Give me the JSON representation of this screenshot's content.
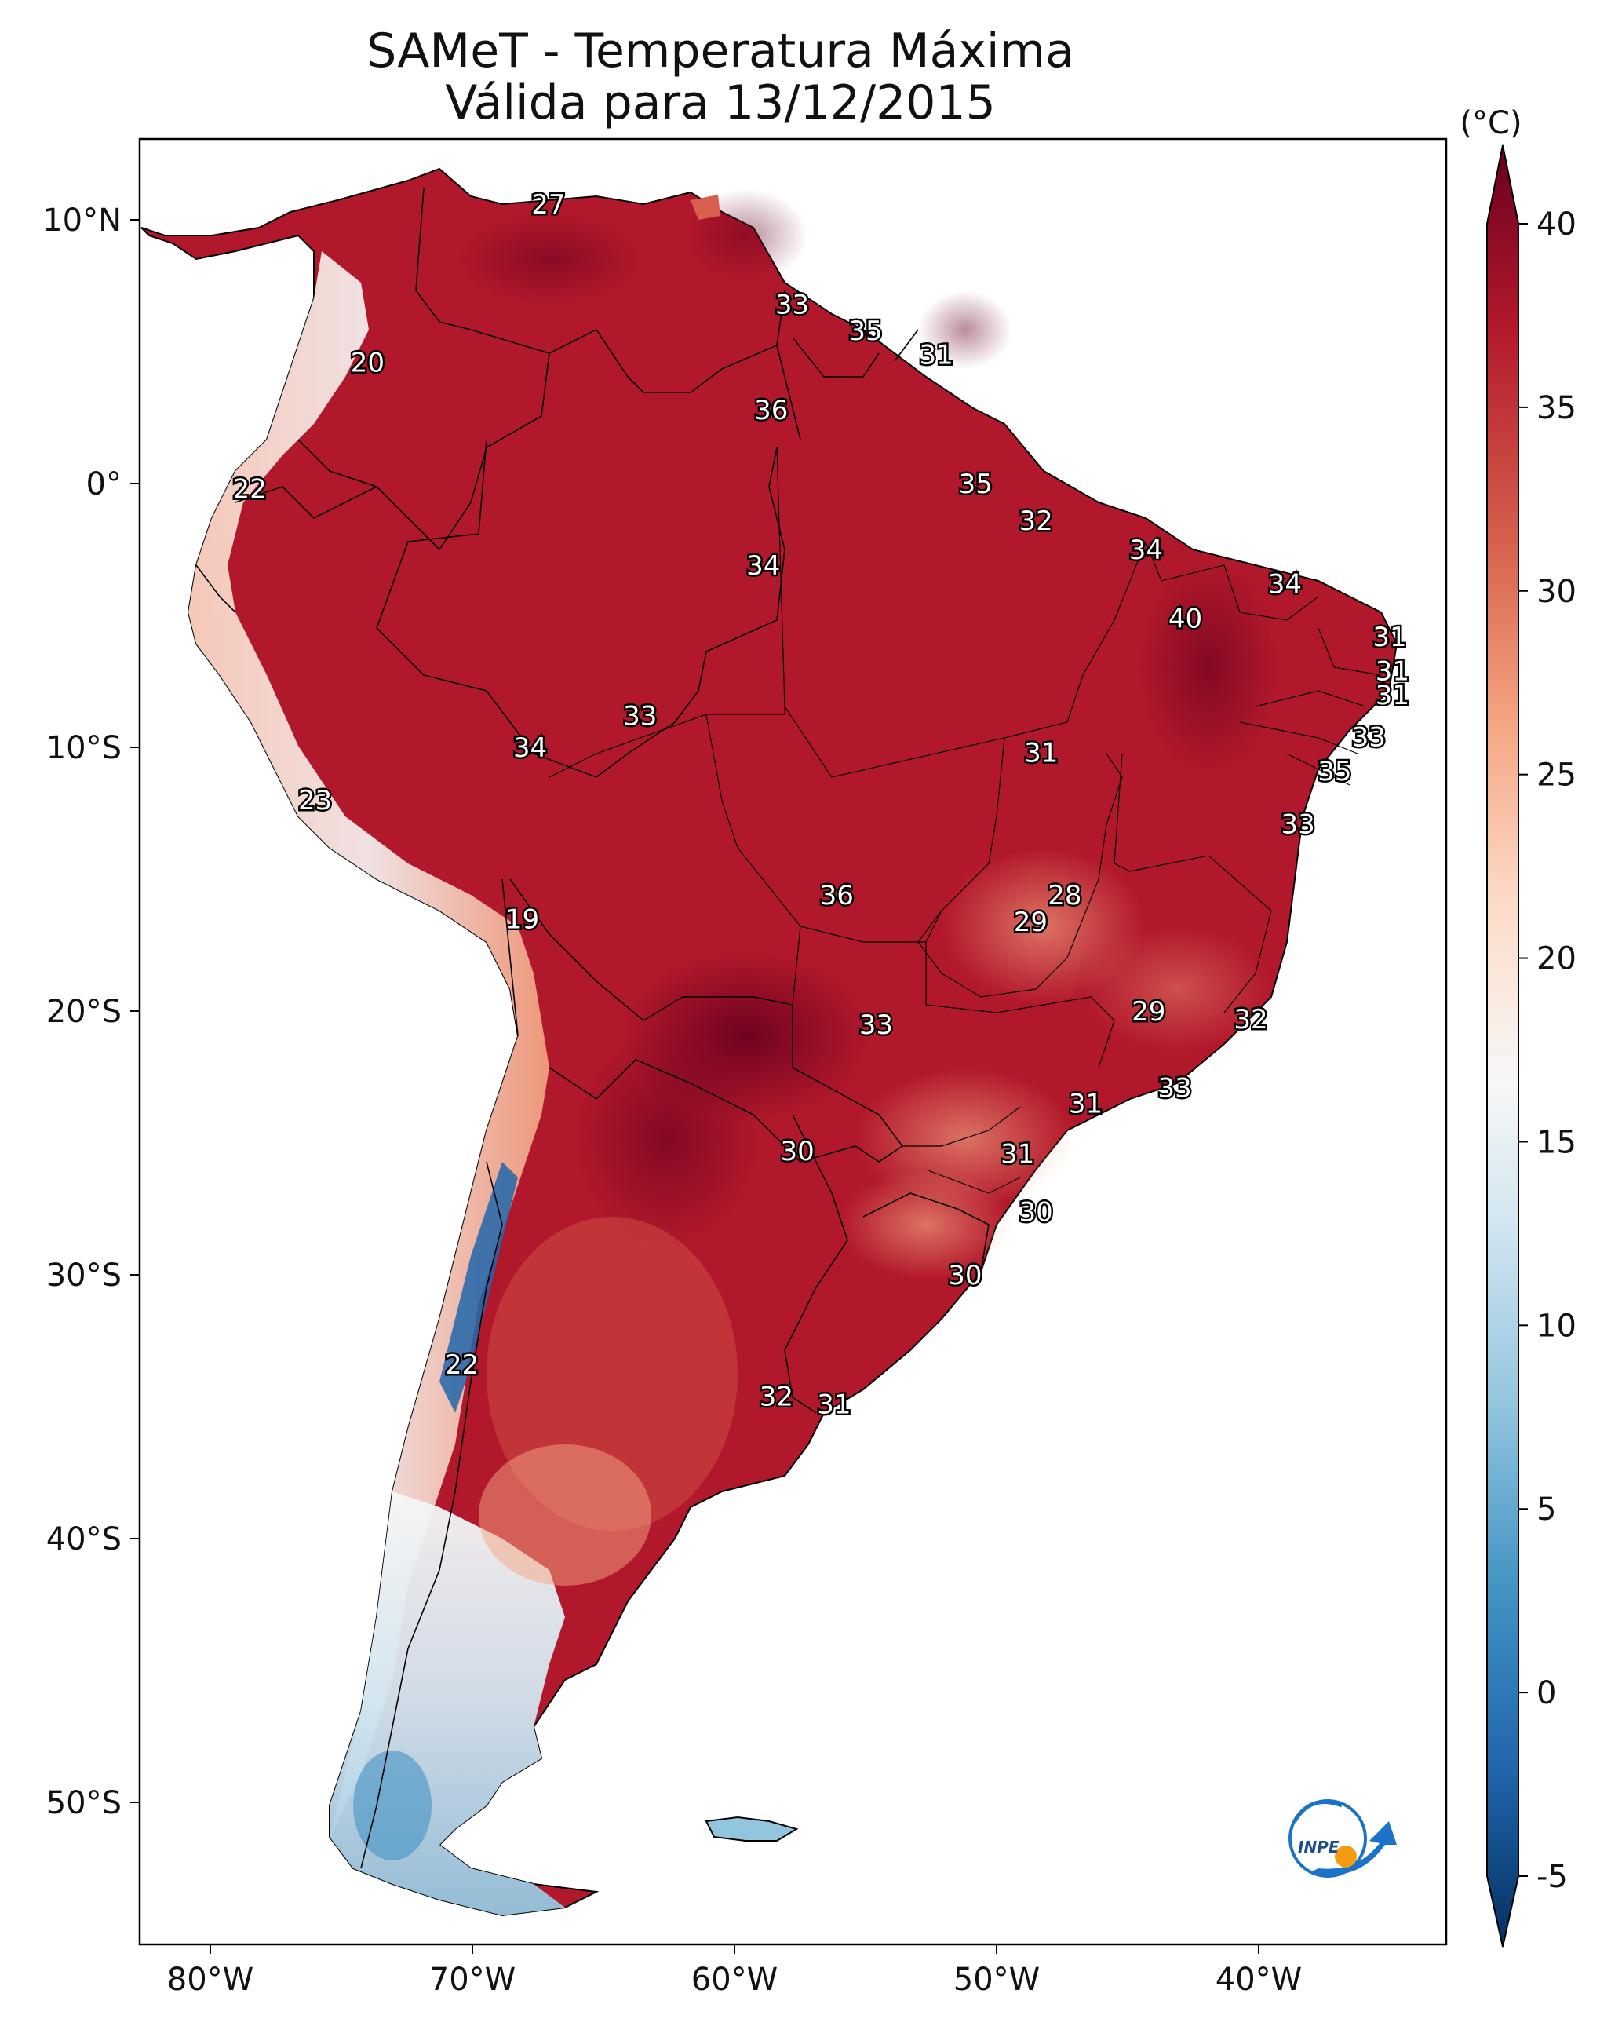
{
  "title": {
    "line1": "SAMeT - Temperatura Máxima",
    "line2": "Válida para 13/12/2015"
  },
  "colorbar": {
    "unit": "(°C)",
    "ticks": [
      "40",
      "35",
      "30",
      "25",
      "20",
      "15",
      "10",
      "5",
      "0",
      "-5"
    ],
    "range": [
      -5,
      40
    ],
    "colors": [
      "#053061",
      "#2166ac",
      "#4393c3",
      "#92c5de",
      "#d1e5f0",
      "#f7f7f7",
      "#fddbc7",
      "#f4a582",
      "#d6604d",
      "#b2182b",
      "#67001f"
    ]
  },
  "axes": {
    "lon_labels": [
      "80°W",
      "70°W",
      "60°W",
      "50°W",
      "40°W"
    ],
    "lat_labels": [
      "10°N",
      "0°",
      "10°S",
      "20°S",
      "30°S",
      "40°S",
      "50°S"
    ]
  },
  "station_values": [
    {
      "lon": -67.1,
      "lat": 10.6,
      "text": "27"
    },
    {
      "lon": -74.0,
      "lat": 4.6,
      "text": "20"
    },
    {
      "lon": -57.8,
      "lat": 6.8,
      "text": "33"
    },
    {
      "lon": -55.0,
      "lat": 5.8,
      "text": "35"
    },
    {
      "lon": -52.3,
      "lat": 4.9,
      "text": "31"
    },
    {
      "lon": -58.6,
      "lat": 2.8,
      "text": "36"
    },
    {
      "lon": -78.5,
      "lat": -0.2,
      "text": "22"
    },
    {
      "lon": -50.8,
      "lat": 0.0,
      "text": "35"
    },
    {
      "lon": -48.5,
      "lat": -1.4,
      "text": "32"
    },
    {
      "lon": -44.3,
      "lat": -2.5,
      "text": "34"
    },
    {
      "lon": -58.9,
      "lat": -3.1,
      "text": "34"
    },
    {
      "lon": -39.0,
      "lat": -3.8,
      "text": "34"
    },
    {
      "lon": -42.8,
      "lat": -5.1,
      "text": "40"
    },
    {
      "lon": -35.0,
      "lat": -5.8,
      "text": "31"
    },
    {
      "lon": -34.9,
      "lat": -7.1,
      "text": "31"
    },
    {
      "lon": -34.9,
      "lat": -8.0,
      "text": "31"
    },
    {
      "lon": -63.6,
      "lat": -8.8,
      "text": "33"
    },
    {
      "lon": -67.8,
      "lat": -10.0,
      "text": "34"
    },
    {
      "lon": -48.3,
      "lat": -10.2,
      "text": "31"
    },
    {
      "lon": -35.8,
      "lat": -9.6,
      "text": "33"
    },
    {
      "lon": -37.1,
      "lat": -10.9,
      "text": "35"
    },
    {
      "lon": -76.0,
      "lat": -12.0,
      "text": "23"
    },
    {
      "lon": -38.5,
      "lat": -12.9,
      "text": "33"
    },
    {
      "lon": -56.1,
      "lat": -15.6,
      "text": "36"
    },
    {
      "lon": -47.4,
      "lat": -15.6,
      "text": "28"
    },
    {
      "lon": -48.7,
      "lat": -16.6,
      "text": "29"
    },
    {
      "lon": -68.1,
      "lat": -16.5,
      "text": "19"
    },
    {
      "lon": -44.2,
      "lat": -20.0,
      "text": "29"
    },
    {
      "lon": -40.3,
      "lat": -20.3,
      "text": "32"
    },
    {
      "lon": -54.6,
      "lat": -20.5,
      "text": "33"
    },
    {
      "lon": -43.2,
      "lat": -22.9,
      "text": "33"
    },
    {
      "lon": -46.6,
      "lat": -23.5,
      "text": "31"
    },
    {
      "lon": -49.2,
      "lat": -25.4,
      "text": "31"
    },
    {
      "lon": -57.6,
      "lat": -25.3,
      "text": "30"
    },
    {
      "lon": -48.5,
      "lat": -27.6,
      "text": "30"
    },
    {
      "lon": -51.2,
      "lat": -30.0,
      "text": "30"
    },
    {
      "lon": -70.4,
      "lat": -33.4,
      "text": "22"
    },
    {
      "lon": -58.4,
      "lat": -34.6,
      "text": "32"
    },
    {
      "lon": -56.2,
      "lat": -34.9,
      "text": "31"
    }
  ]
}
